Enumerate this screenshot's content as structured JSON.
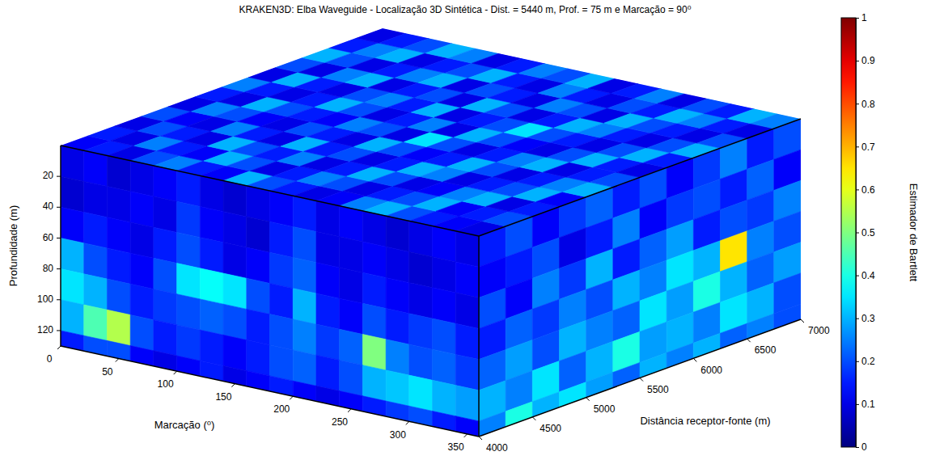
{
  "chart_data": {
    "type": "heatmap3d",
    "title": "KRAKEN3D: Elba Waveguide - Localização 3D Sintética - Dist. = 5440 m, Prof. = 75 m e Marcação = 90⁰",
    "xlabel": "Marcação (⁰)",
    "ylabel": "Profundidade (m)",
    "zlabel": "Distância receptor-fonte (m)",
    "xlim": [
      0,
      360
    ],
    "xticks": [
      0,
      50,
      100,
      150,
      200,
      250,
      300,
      350
    ],
    "ylim": [
      0,
      130
    ],
    "yticks": [
      20,
      40,
      60,
      80,
      100,
      120
    ],
    "zlim": [
      4000,
      7000
    ],
    "zticks": [
      4000,
      4500,
      5000,
      5500,
      6000,
      6500,
      7000
    ],
    "colorbar": {
      "label": "Estimador de Bartlett",
      "range": [
        0,
        1
      ],
      "ticks": [
        0,
        0.1,
        0.2,
        0.3,
        0.4,
        0.5,
        0.6,
        0.7,
        0.8,
        0.9,
        1
      ]
    },
    "front": {
      "x_edges": [
        0,
        20,
        40,
        60,
        80,
        100,
        120,
        140,
        160,
        180,
        200,
        220,
        240,
        260,
        280,
        300,
        320,
        340,
        360
      ],
      "y_edges": [
        0,
        20,
        40,
        60,
        80,
        100,
        120,
        130
      ],
      "values": [
        [
          0.1,
          0.12,
          0.08,
          0.1,
          0.12,
          0.15,
          0.1,
          0.08,
          0.1,
          0.12,
          0.15,
          0.1,
          0.12,
          0.1,
          0.08,
          0.1,
          0.12,
          0.1
        ],
        [
          0.08,
          0.1,
          0.1,
          0.12,
          0.1,
          0.18,
          0.12,
          0.1,
          0.08,
          0.15,
          0.2,
          0.1,
          0.1,
          0.12,
          0.1,
          0.08,
          0.1,
          0.12
        ],
        [
          0.12,
          0.15,
          0.12,
          0.1,
          0.15,
          0.2,
          0.15,
          0.1,
          0.12,
          0.18,
          0.22,
          0.12,
          0.1,
          0.15,
          0.12,
          0.1,
          0.12,
          0.1
        ],
        [
          0.3,
          0.2,
          0.15,
          0.12,
          0.2,
          0.35,
          0.38,
          0.35,
          0.2,
          0.15,
          0.3,
          0.15,
          0.12,
          0.2,
          0.15,
          0.18,
          0.2,
          0.15
        ],
        [
          0.35,
          0.3,
          0.2,
          0.15,
          0.18,
          0.2,
          0.22,
          0.2,
          0.15,
          0.2,
          0.25,
          0.18,
          0.22,
          0.5,
          0.25,
          0.2,
          0.22,
          0.18
        ],
        [
          0.3,
          0.45,
          0.55,
          0.2,
          0.15,
          0.18,
          0.15,
          0.12,
          0.15,
          0.2,
          0.22,
          0.15,
          0.2,
          0.3,
          0.32,
          0.35,
          0.3,
          0.28
        ],
        [
          0.15,
          0.2,
          0.2,
          0.12,
          0.1,
          0.12,
          0.15,
          0.1,
          0.12,
          0.15,
          0.12,
          0.1,
          0.12,
          0.15,
          0.18,
          0.2,
          0.15,
          0.12
        ]
      ]
    },
    "side": {
      "z_edges": [
        4000,
        4250,
        4500,
        4750,
        5000,
        5250,
        5500,
        5750,
        6000,
        6250,
        6500,
        6750,
        7000
      ],
      "y_edges": [
        0,
        20,
        40,
        60,
        80,
        100,
        120,
        130
      ],
      "values": [
        [
          0.15,
          0.2,
          0.12,
          0.18,
          0.22,
          0.15,
          0.2,
          0.12,
          0.18,
          0.25,
          0.15,
          0.2
        ],
        [
          0.12,
          0.15,
          0.2,
          0.1,
          0.15,
          0.25,
          0.12,
          0.18,
          0.2,
          0.15,
          0.22,
          0.12
        ],
        [
          0.2,
          0.12,
          0.25,
          0.18,
          0.3,
          0.15,
          0.22,
          0.28,
          0.15,
          0.2,
          0.18,
          0.25
        ],
        [
          0.15,
          0.22,
          0.18,
          0.25,
          0.2,
          0.3,
          0.25,
          0.35,
          0.3,
          0.65,
          0.25,
          0.2
        ],
        [
          0.22,
          0.28,
          0.2,
          0.3,
          0.25,
          0.22,
          0.35,
          0.28,
          0.4,
          0.3,
          0.22,
          0.28
        ],
        [
          0.3,
          0.25,
          0.35,
          0.22,
          0.3,
          0.4,
          0.28,
          0.3,
          0.25,
          0.35,
          0.3,
          0.2
        ],
        [
          0.25,
          0.4,
          0.3,
          0.35,
          0.28,
          0.22,
          0.3,
          0.25,
          0.3,
          0.22,
          0.25,
          0.2
        ]
      ]
    },
    "top": {
      "x_edges": [
        0,
        20,
        40,
        60,
        80,
        100,
        120,
        140,
        160,
        180,
        200,
        220,
        240,
        260,
        280,
        300,
        320,
        340,
        360
      ],
      "z_edges": [
        4000,
        4250,
        4500,
        4750,
        5000,
        5250,
        5500,
        5750,
        6000,
        6250,
        6500,
        6750,
        7000
      ],
      "values": [
        [
          0.12,
          0.15,
          0.1,
          0.2,
          0.25,
          0.15,
          0.12,
          0.3,
          0.2,
          0.15,
          0.1,
          0.12,
          0.25,
          0.3,
          0.2,
          0.15,
          0.12,
          0.1
        ],
        [
          0.15,
          0.1,
          0.25,
          0.15,
          0.12,
          0.3,
          0.2,
          0.1,
          0.15,
          0.25,
          0.2,
          0.1,
          0.15,
          0.2,
          0.3,
          0.12,
          0.15,
          0.2
        ],
        [
          0.1,
          0.2,
          0.15,
          0.1,
          0.3,
          0.2,
          0.15,
          0.25,
          0.1,
          0.15,
          0.3,
          0.2,
          0.1,
          0.12,
          0.25,
          0.3,
          0.1,
          0.15
        ],
        [
          0.2,
          0.12,
          0.1,
          0.25,
          0.15,
          0.1,
          0.3,
          0.15,
          0.2,
          0.1,
          0.15,
          0.3,
          0.25,
          0.1,
          0.15,
          0.2,
          0.3,
          0.12
        ],
        [
          0.1,
          0.25,
          0.2,
          0.12,
          0.1,
          0.2,
          0.15,
          0.1,
          0.3,
          0.2,
          0.12,
          0.15,
          0.3,
          0.2,
          0.1,
          0.15,
          0.25,
          0.3
        ],
        [
          0.15,
          0.1,
          0.3,
          0.2,
          0.15,
          0.12,
          0.25,
          0.2,
          0.1,
          0.35,
          0.2,
          0.1,
          0.15,
          0.25,
          0.3,
          0.1,
          0.15,
          0.2
        ],
        [
          0.25,
          0.15,
          0.1,
          0.15,
          0.3,
          0.2,
          0.1,
          0.15,
          0.25,
          0.1,
          0.3,
          0.2,
          0.12,
          0.1,
          0.2,
          0.3,
          0.15,
          0.1
        ],
        [
          0.1,
          0.3,
          0.15,
          0.1,
          0.2,
          0.25,
          0.15,
          0.3,
          0.1,
          0.15,
          0.2,
          0.35,
          0.2,
          0.15,
          0.1,
          0.2,
          0.3,
          0.15
        ],
        [
          0.2,
          0.1,
          0.25,
          0.3,
          0.1,
          0.15,
          0.2,
          0.1,
          0.3,
          0.2,
          0.1,
          0.15,
          0.3,
          0.25,
          0.15,
          0.1,
          0.2,
          0.3
        ],
        [
          0.3,
          0.2,
          0.1,
          0.15,
          0.25,
          0.3,
          0.1,
          0.2,
          0.15,
          0.1,
          0.25,
          0.2,
          0.1,
          0.3,
          0.2,
          0.15,
          0.1,
          0.2
        ],
        [
          0.15,
          0.25,
          0.3,
          0.1,
          0.15,
          0.2,
          0.3,
          0.15,
          0.1,
          0.25,
          0.15,
          0.1,
          0.2,
          0.15,
          0.3,
          0.25,
          0.15,
          0.1
        ],
        [
          0.1,
          0.15,
          0.2,
          0.3,
          0.25,
          0.1,
          0.15,
          0.25,
          0.2,
          0.3,
          0.1,
          0.15,
          0.25,
          0.1,
          0.2,
          0.15,
          0.3,
          0.25
        ]
      ]
    }
  }
}
